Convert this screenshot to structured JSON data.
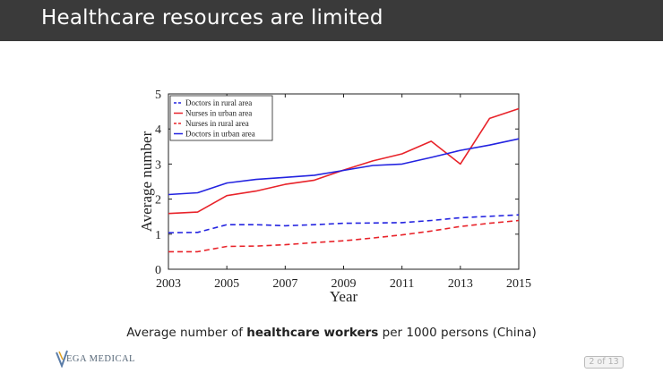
{
  "slide": {
    "title": "Healthcare resources are limited",
    "caption": {
      "before": "Average number of ",
      "bold": "healthcare workers",
      "after": " per 1000 persons (China)"
    },
    "logo_text": "EGA MEDICAL",
    "page_indicator": "2 of 13"
  },
  "colors": {
    "title_bar": "#3a3a3a",
    "red": "#e8232a",
    "blue": "#2323e0",
    "axis": "#222222"
  },
  "chart_data": {
    "type": "line",
    "title": "",
    "xlabel": "Year",
    "ylabel": "Average number",
    "xlim": [
      2003,
      2015
    ],
    "ylim": [
      0,
      5
    ],
    "x_ticks": [
      "2003",
      "2005",
      "2007",
      "2009",
      "2011",
      "2013",
      "2015"
    ],
    "y_ticks": [
      "0",
      "1",
      "2",
      "3",
      "4",
      "5"
    ],
    "grid": false,
    "legend_position": "top-left",
    "x": [
      2003,
      2004,
      2005,
      2006,
      2007,
      2008,
      2009,
      2010,
      2011,
      2012,
      2013,
      2014,
      2015
    ],
    "series": [
      {
        "name": "Doctors in rural area",
        "color": "#2323e0",
        "dash": "dashed",
        "values": [
          1.04,
          1.05,
          1.27,
          1.27,
          1.24,
          1.27,
          1.31,
          1.32,
          1.33,
          1.39,
          1.47,
          1.51,
          1.55
        ]
      },
      {
        "name": "Nurses in urban area",
        "color": "#e8232a",
        "dash": "solid",
        "values": [
          1.59,
          1.63,
          2.1,
          2.23,
          2.42,
          2.54,
          2.83,
          3.09,
          3.29,
          3.65,
          3.0,
          4.3,
          4.58
        ]
      },
      {
        "name": "Nurses in rural area",
        "color": "#e8232a",
        "dash": "dashed",
        "values": [
          0.5,
          0.5,
          0.65,
          0.66,
          0.7,
          0.76,
          0.81,
          0.89,
          0.98,
          1.09,
          1.22,
          1.31,
          1.39
        ]
      },
      {
        "name": "Doctors in urban area",
        "color": "#2323e0",
        "dash": "solid",
        "values": [
          2.13,
          2.18,
          2.46,
          2.56,
          2.62,
          2.68,
          2.82,
          2.96,
          3.0,
          3.19,
          3.39,
          3.54,
          3.72
        ]
      }
    ]
  }
}
